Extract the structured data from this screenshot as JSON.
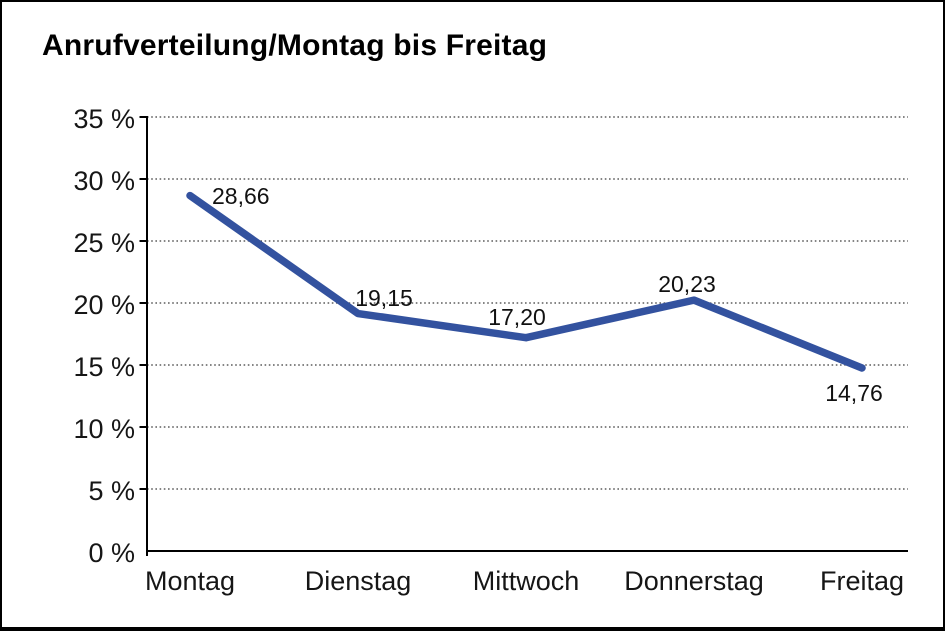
{
  "window": {
    "background": "#ffffff",
    "border_color": "#000000"
  },
  "chart_data": {
    "type": "line",
    "title": "Anrufverteilung/Montag bis Freitag",
    "categories": [
      "Montag",
      "Dienstag",
      "Mittwoch",
      "Donnerstag",
      "Freitag"
    ],
    "series": [
      {
        "name": "Anrufverteilung",
        "values": [
          28.66,
          19.15,
          17.2,
          20.23,
          14.76
        ],
        "color": "#33529F"
      }
    ],
    "value_labels": [
      "28,66",
      "19,15",
      "17,20",
      "20,23",
      "14,76"
    ],
    "xlabel": "",
    "ylabel": "",
    "unit": "%",
    "ylim": [
      0,
      35
    ],
    "y_ticks": [
      0,
      5,
      10,
      15,
      20,
      25,
      30,
      35
    ],
    "y_tick_labels": [
      "0 %",
      "5 %",
      "10 %",
      "15 %",
      "20 %",
      "25 %",
      "30 %",
      "35 %"
    ],
    "grid": "horizontal-dotted",
    "gridline_color": "#3c3c3c",
    "axis_color": "#000000",
    "legend": "none"
  }
}
